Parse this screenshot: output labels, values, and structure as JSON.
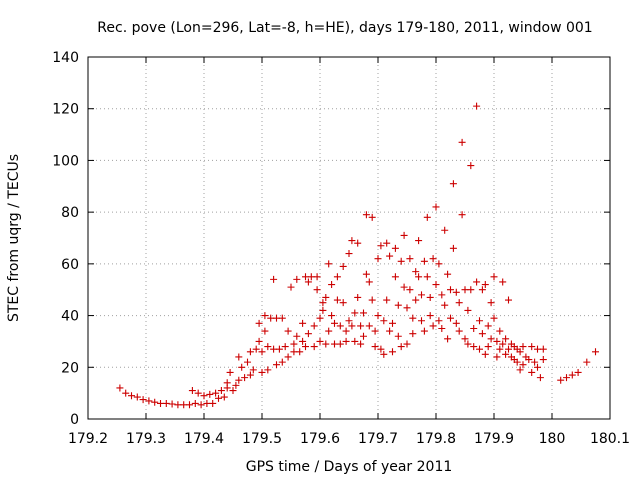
{
  "colors": {
    "series": "#cc0000",
    "axis": "#000000",
    "grid": "#a0a0a0"
  },
  "chart_data": {
    "type": "scatter",
    "title": "Rec. pove (Lon=296, Lat=-8, h=HE), days 179-180, 2011, window 001",
    "xlabel": "GPS time / Days of year 2011",
    "ylabel": "STEC from uqrg / TECUs",
    "xlim": [
      179.2,
      180.1
    ],
    "ylim": [
      0,
      140
    ],
    "x_ticks": [
      179.2,
      179.3,
      179.4,
      179.5,
      179.6,
      179.7,
      179.8,
      179.9,
      180,
      180.1
    ],
    "x_tick_labels": [
      "179.2",
      "179.3",
      "179.4",
      "179.5",
      "179.6",
      "179.7",
      "179.8",
      "179.9",
      "180",
      "180.1"
    ],
    "y_ticks": [
      0,
      20,
      40,
      60,
      80,
      100,
      120,
      140
    ],
    "y_tick_labels": [
      "0",
      "20",
      "40",
      "60",
      "80",
      "100",
      "120",
      "140"
    ],
    "grid": true,
    "marker": "plus",
    "series": [
      {
        "points": [
          [
            179.255,
            12
          ],
          [
            179.265,
            10
          ],
          [
            179.275,
            9
          ],
          [
            179.285,
            8.5
          ],
          [
            179.295,
            7.5
          ],
          [
            179.305,
            7
          ],
          [
            179.315,
            6.5
          ],
          [
            179.325,
            6
          ],
          [
            179.335,
            6
          ],
          [
            179.345,
            5.8
          ],
          [
            179.355,
            5.5
          ],
          [
            179.365,
            5.5
          ],
          [
            179.375,
            5.5
          ],
          [
            179.38,
            11
          ],
          [
            179.385,
            6
          ],
          [
            179.39,
            10
          ],
          [
            179.395,
            5.5
          ],
          [
            179.4,
            9
          ],
          [
            179.405,
            6
          ],
          [
            179.41,
            9.5
          ],
          [
            179.415,
            6
          ],
          [
            179.42,
            10
          ],
          [
            179.425,
            8
          ],
          [
            179.43,
            11
          ],
          [
            179.435,
            8.5
          ],
          [
            179.44,
            12
          ],
          [
            179.44,
            14
          ],
          [
            179.445,
            18
          ],
          [
            179.45,
            11
          ],
          [
            179.455,
            13
          ],
          [
            179.46,
            15
          ],
          [
            179.46,
            24
          ],
          [
            179.465,
            20
          ],
          [
            179.47,
            16
          ],
          [
            179.475,
            22
          ],
          [
            179.48,
            26
          ],
          [
            179.48,
            17
          ],
          [
            179.485,
            19
          ],
          [
            179.49,
            27
          ],
          [
            179.495,
            37
          ],
          [
            179.495,
            30
          ],
          [
            179.5,
            18
          ],
          [
            179.5,
            26
          ],
          [
            179.505,
            34
          ],
          [
            179.505,
            40
          ],
          [
            179.51,
            28
          ],
          [
            179.51,
            19
          ],
          [
            179.515,
            39
          ],
          [
            179.52,
            54
          ],
          [
            179.52,
            27
          ],
          [
            179.525,
            39
          ],
          [
            179.525,
            21
          ],
          [
            179.53,
            27
          ],
          [
            179.535,
            22
          ],
          [
            179.535,
            39
          ],
          [
            179.54,
            28
          ],
          [
            179.545,
            34
          ],
          [
            179.545,
            24
          ],
          [
            179.55,
            51
          ],
          [
            179.555,
            29
          ],
          [
            179.555,
            26
          ],
          [
            179.56,
            32
          ],
          [
            179.56,
            54
          ],
          [
            179.565,
            26
          ],
          [
            179.57,
            30
          ],
          [
            179.57,
            37
          ],
          [
            179.575,
            55
          ],
          [
            179.575,
            28
          ],
          [
            179.58,
            53
          ],
          [
            179.58,
            33
          ],
          [
            179.585,
            55
          ],
          [
            179.59,
            36
          ],
          [
            179.59,
            28
          ],
          [
            179.595,
            50
          ],
          [
            179.595,
            55
          ],
          [
            179.6,
            39
          ],
          [
            179.6,
            30
          ],
          [
            179.605,
            45
          ],
          [
            179.605,
            42
          ],
          [
            179.61,
            47
          ],
          [
            179.61,
            29
          ],
          [
            179.615,
            60
          ],
          [
            179.615,
            34
          ],
          [
            179.62,
            40
          ],
          [
            179.62,
            52
          ],
          [
            179.625,
            37
          ],
          [
            179.625,
            29
          ],
          [
            179.63,
            55
          ],
          [
            179.63,
            46
          ],
          [
            179.635,
            36
          ],
          [
            179.635,
            29
          ],
          [
            179.64,
            59
          ],
          [
            179.64,
            45
          ],
          [
            179.645,
            34
          ],
          [
            179.645,
            30
          ],
          [
            179.65,
            64
          ],
          [
            179.65,
            38
          ],
          [
            179.655,
            69
          ],
          [
            179.655,
            36
          ],
          [
            179.66,
            30
          ],
          [
            179.66,
            41
          ],
          [
            179.665,
            68
          ],
          [
            179.665,
            47
          ],
          [
            179.67,
            36
          ],
          [
            179.67,
            29
          ],
          [
            179.675,
            41
          ],
          [
            179.675,
            32
          ],
          [
            179.68,
            79
          ],
          [
            179.68,
            56
          ],
          [
            179.685,
            53
          ],
          [
            179.685,
            36
          ],
          [
            179.69,
            78
          ],
          [
            179.69,
            46
          ],
          [
            179.695,
            34
          ],
          [
            179.695,
            28
          ],
          [
            179.7,
            62
          ],
          [
            179.7,
            40
          ],
          [
            179.705,
            67
          ],
          [
            179.705,
            27
          ],
          [
            179.71,
            38
          ],
          [
            179.71,
            25
          ],
          [
            179.715,
            68
          ],
          [
            179.715,
            46
          ],
          [
            179.72,
            63
          ],
          [
            179.72,
            34
          ],
          [
            179.725,
            37
          ],
          [
            179.725,
            26
          ],
          [
            179.73,
            66
          ],
          [
            179.73,
            55
          ],
          [
            179.735,
            44
          ],
          [
            179.735,
            32
          ],
          [
            179.74,
            61
          ],
          [
            179.74,
            28
          ],
          [
            179.745,
            71
          ],
          [
            179.745,
            51
          ],
          [
            179.75,
            43
          ],
          [
            179.75,
            29
          ],
          [
            179.755,
            62
          ],
          [
            179.755,
            50
          ],
          [
            179.76,
            39
          ],
          [
            179.76,
            33
          ],
          [
            179.765,
            57
          ],
          [
            179.765,
            46
          ],
          [
            179.77,
            69
          ],
          [
            179.77,
            55
          ],
          [
            179.775,
            48
          ],
          [
            179.775,
            38
          ],
          [
            179.78,
            61
          ],
          [
            179.78,
            34
          ],
          [
            179.785,
            78
          ],
          [
            179.785,
            55
          ],
          [
            179.79,
            47
          ],
          [
            179.79,
            40
          ],
          [
            179.795,
            62
          ],
          [
            179.795,
            36
          ],
          [
            179.8,
            82
          ],
          [
            179.8,
            52
          ],
          [
            179.805,
            38
          ],
          [
            179.805,
            60
          ],
          [
            179.81,
            48
          ],
          [
            179.81,
            35
          ],
          [
            179.815,
            73
          ],
          [
            179.815,
            44
          ],
          [
            179.82,
            56
          ],
          [
            179.82,
            31
          ],
          [
            179.825,
            50
          ],
          [
            179.825,
            39
          ],
          [
            179.83,
            91
          ],
          [
            179.83,
            66
          ],
          [
            179.835,
            49
          ],
          [
            179.835,
            37
          ],
          [
            179.84,
            34
          ],
          [
            179.84,
            45
          ],
          [
            179.845,
            107
          ],
          [
            179.845,
            79
          ],
          [
            179.85,
            50
          ],
          [
            179.85,
            31
          ],
          [
            179.855,
            42
          ],
          [
            179.855,
            29
          ],
          [
            179.86,
            98
          ],
          [
            179.86,
            50
          ],
          [
            179.865,
            35
          ],
          [
            179.865,
            28
          ],
          [
            179.87,
            121
          ],
          [
            179.87,
            53
          ],
          [
            179.875,
            38
          ],
          [
            179.875,
            27
          ],
          [
            179.88,
            50
          ],
          [
            179.88,
            33
          ],
          [
            179.885,
            52
          ],
          [
            179.885,
            25
          ],
          [
            179.89,
            36
          ],
          [
            179.89,
            28
          ],
          [
            179.895,
            45
          ],
          [
            179.895,
            31
          ],
          [
            179.9,
            55
          ],
          [
            179.9,
            39
          ],
          [
            179.905,
            30
          ],
          [
            179.905,
            24
          ],
          [
            179.91,
            34
          ],
          [
            179.91,
            27
          ],
          [
            179.915,
            53
          ],
          [
            179.915,
            29
          ],
          [
            179.92,
            31
          ],
          [
            179.92,
            25
          ],
          [
            179.925,
            46
          ],
          [
            179.925,
            27
          ],
          [
            179.93,
            29
          ],
          [
            179.93,
            24
          ],
          [
            179.935,
            28
          ],
          [
            179.935,
            23
          ],
          [
            179.94,
            27
          ],
          [
            179.94,
            22
          ],
          [
            179.945,
            26
          ],
          [
            179.945,
            19
          ],
          [
            179.95,
            28
          ],
          [
            179.95,
            21
          ],
          [
            179.955,
            24
          ],
          [
            179.96,
            23
          ],
          [
            179.965,
            28
          ],
          [
            179.965,
            18
          ],
          [
            179.97,
            22
          ],
          [
            179.975,
            27
          ],
          [
            179.975,
            20
          ],
          [
            179.98,
            16
          ],
          [
            179.985,
            23
          ],
          [
            179.985,
            27
          ],
          [
            180.015,
            15
          ],
          [
            180.025,
            16
          ],
          [
            180.035,
            17
          ],
          [
            180.045,
            18
          ],
          [
            180.06,
            22
          ],
          [
            180.075,
            26
          ]
        ]
      }
    ]
  }
}
